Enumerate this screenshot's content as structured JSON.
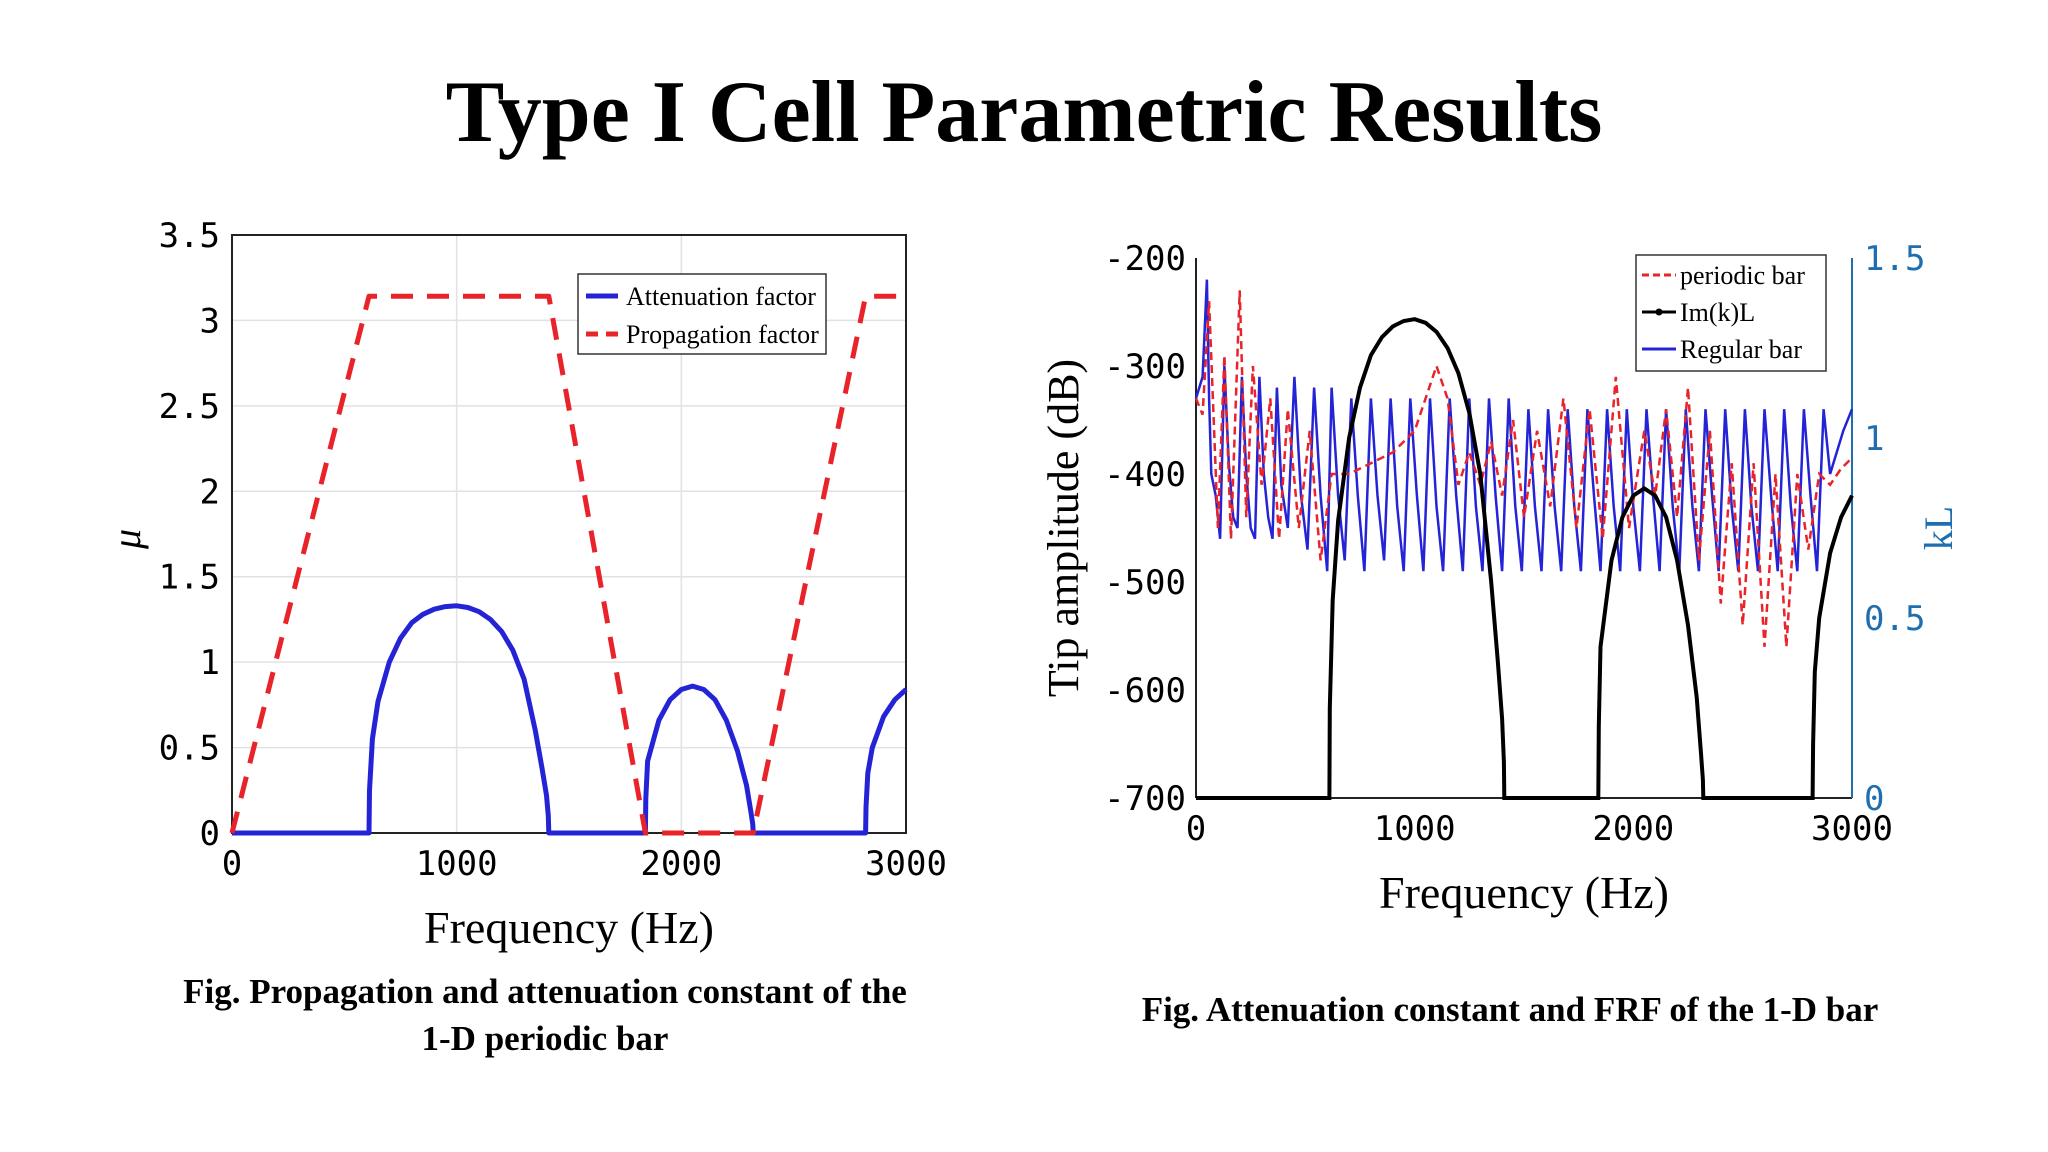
{
  "slide": {
    "title": "Type I Cell Parametric Results",
    "caption_left_line1": "Fig.   Propagation and attenuation constant of the",
    "caption_left_line2": "1-D periodic bar",
    "caption_right": "Fig.  Attenuation constant and FRF of the 1-D bar"
  },
  "colors": {
    "red": "#e8232a",
    "blue": "#2424d6",
    "black": "#000000",
    "right_axis": "#1f6fb0"
  },
  "chart_data": [
    {
      "type": "line",
      "title": "",
      "xlabel": "Frequency (Hz)",
      "ylabel": "μ",
      "xlim": [
        0,
        3000
      ],
      "ylim": [
        0,
        3.5
      ],
      "xticks": [
        "0",
        "1000",
        "2000",
        "3000"
      ],
      "yticks": [
        "0",
        "0.5",
        "1",
        "1.5",
        "2",
        "2.5",
        "3",
        "3.5"
      ],
      "grid": true,
      "legend_position": "top-right",
      "series": [
        {
          "name": "Attenuation factor",
          "color": "#2424d6",
          "style": "solid",
          "x": [
            0,
            610,
            612,
            625,
            650,
            700,
            750,
            800,
            850,
            900,
            950,
            1000,
            1050,
            1100,
            1150,
            1200,
            1250,
            1300,
            1350,
            1380,
            1400,
            1408,
            1410,
            1840,
            1842,
            1850,
            1900,
            1950,
            2000,
            2050,
            2100,
            2150,
            2200,
            2250,
            2290,
            2310,
            2318,
            2320,
            2820,
            2822,
            2830,
            2850,
            2900,
            2950,
            3000
          ],
          "y": [
            0,
            0,
            0.25,
            0.55,
            0.77,
            1.0,
            1.14,
            1.23,
            1.28,
            1.31,
            1.325,
            1.33,
            1.32,
            1.295,
            1.25,
            1.18,
            1.07,
            0.9,
            0.6,
            0.38,
            0.22,
            0.1,
            0,
            0,
            0.2,
            0.42,
            0.66,
            0.78,
            0.84,
            0.86,
            0.84,
            0.78,
            0.66,
            0.48,
            0.28,
            0.12,
            0.05,
            0,
            0,
            0.15,
            0.35,
            0.5,
            0.68,
            0.78,
            0.84
          ]
        },
        {
          "name": "Propagation factor",
          "color": "#e8232a",
          "style": "dashed",
          "x": [
            0,
            610,
            1410,
            1840,
            2320,
            2820,
            3000
          ],
          "y": [
            0,
            3.1416,
            3.1416,
            0,
            0,
            3.1416,
            3.1416
          ]
        }
      ]
    },
    {
      "type": "line",
      "title": "",
      "xlabel": "Frequency (Hz)",
      "ylabel": "Tip amplitude (dB)",
      "y2label": "kL",
      "xlim": [
        0,
        3000
      ],
      "ylim": [
        -700,
        -200
      ],
      "y2lim": [
        0,
        1.5
      ],
      "xticks": [
        "0",
        "1000",
        "2000",
        "3000"
      ],
      "yticks": [
        "-200",
        "-300",
        "-400",
        "-500",
        "-600",
        "-700"
      ],
      "y2ticks": [
        "0",
        "0.5",
        "1",
        "1.5"
      ],
      "grid": false,
      "legend_position": "top-right",
      "series": [
        {
          "name": "periodic bar",
          "color": "#e8232a",
          "style": "dashed",
          "axis": "left",
          "x": [
            0,
            30,
            60,
            100,
            130,
            160,
            200,
            230,
            260,
            300,
            340,
            380,
            420,
            470,
            520,
            570,
            620,
            700,
            800,
            900,
            1000,
            1100,
            1150,
            1200,
            1250,
            1300,
            1350,
            1400,
            1450,
            1500,
            1560,
            1620,
            1680,
            1740,
            1800,
            1860,
            1920,
            1980,
            2050,
            2100,
            2150,
            2200,
            2250,
            2300,
            2350,
            2400,
            2450,
            2500,
            2550,
            2600,
            2650,
            2700,
            2750,
            2800,
            2850,
            2900,
            2950,
            3000
          ],
          "y": [
            -330,
            -345,
            -240,
            -450,
            -290,
            -460,
            -230,
            -440,
            -300,
            -410,
            -330,
            -460,
            -340,
            -450,
            -360,
            -480,
            -400,
            -400,
            -390,
            -380,
            -360,
            -300,
            -330,
            -410,
            -380,
            -410,
            -370,
            -420,
            -350,
            -440,
            -360,
            -430,
            -330,
            -450,
            -340,
            -460,
            -310,
            -450,
            -360,
            -420,
            -340,
            -440,
            -320,
            -480,
            -360,
            -520,
            -390,
            -540,
            -390,
            -560,
            -400,
            -560,
            -400,
            -470,
            -400,
            -410,
            -395,
            -385
          ]
        },
        {
          "name": "Im(k)L",
          "color": "#000000",
          "style": "solid-dotted",
          "axis": "right",
          "x": [
            0,
            610,
            612,
            625,
            650,
            700,
            750,
            800,
            850,
            900,
            950,
            1000,
            1050,
            1100,
            1150,
            1200,
            1250,
            1300,
            1350,
            1380,
            1400,
            1408,
            1410,
            1840,
            1842,
            1850,
            1900,
            1950,
            2000,
            2050,
            2100,
            2150,
            2200,
            2250,
            2290,
            2310,
            2318,
            2320,
            2820,
            2822,
            2830,
            2850,
            2900,
            2950,
            3000
          ],
          "y": [
            0,
            0,
            0.25,
            0.55,
            0.77,
            1.0,
            1.14,
            1.23,
            1.28,
            1.31,
            1.325,
            1.33,
            1.32,
            1.295,
            1.25,
            1.18,
            1.07,
            0.9,
            0.6,
            0.38,
            0.22,
            0.1,
            0,
            0,
            0.2,
            0.42,
            0.66,
            0.78,
            0.84,
            0.86,
            0.84,
            0.78,
            0.66,
            0.48,
            0.28,
            0.12,
            0.05,
            0,
            0,
            0.15,
            0.35,
            0.5,
            0.68,
            0.78,
            0.84
          ]
        },
        {
          "name": "Regular bar",
          "color": "#2424d6",
          "style": "solid",
          "axis": "left",
          "x": [
            0,
            30,
            50,
            60,
            70,
            90,
            110,
            130,
            150,
            170,
            190,
            210,
            230,
            250,
            270,
            290,
            310,
            330,
            350,
            370,
            390,
            420,
            450,
            480,
            510,
            540,
            570,
            600,
            620,
            650,
            680,
            710,
            740,
            770,
            800,
            830,
            860,
            890,
            920,
            950,
            980,
            1010,
            1040,
            1070,
            1100,
            1130,
            1160,
            1190,
            1220,
            1250,
            1280,
            1310,
            1340,
            1370,
            1400,
            1430,
            1460,
            1490,
            1520,
            1550,
            1580,
            1610,
            1640,
            1670,
            1700,
            1730,
            1760,
            1790,
            1820,
            1850,
            1880,
            1910,
            1940,
            1970,
            2000,
            2030,
            2060,
            2090,
            2120,
            2150,
            2180,
            2210,
            2240,
            2270,
            2300,
            2330,
            2360,
            2390,
            2420,
            2450,
            2480,
            2510,
            2540,
            2570,
            2600,
            2630,
            2660,
            2690,
            2720,
            2750,
            2780,
            2810,
            2840,
            2870,
            2900,
            2930,
            2960,
            3000
          ],
          "y": [
            -330,
            -310,
            -220,
            -330,
            -400,
            -420,
            -460,
            -300,
            -390,
            -440,
            -450,
            -310,
            -400,
            -450,
            -460,
            -310,
            -400,
            -440,
            -460,
            -320,
            -410,
            -450,
            -310,
            -420,
            -470,
            -320,
            -420,
            -490,
            -320,
            -420,
            -480,
            -330,
            -420,
            -490,
            -330,
            -420,
            -480,
            -330,
            -430,
            -490,
            -330,
            -420,
            -490,
            -330,
            -430,
            -490,
            -330,
            -420,
            -490,
            -330,
            -430,
            -490,
            -330,
            -420,
            -490,
            -330,
            -430,
            -490,
            -340,
            -430,
            -490,
            -340,
            -430,
            -490,
            -340,
            -430,
            -490,
            -340,
            -420,
            -490,
            -340,
            -430,
            -490,
            -340,
            -430,
            -490,
            -340,
            -420,
            -490,
            -340,
            -430,
            -490,
            -340,
            -430,
            -490,
            -340,
            -420,
            -490,
            -340,
            -430,
            -490,
            -340,
            -430,
            -490,
            -340,
            -420,
            -490,
            -340,
            -430,
            -490,
            -340,
            -420,
            -490,
            -340,
            -400,
            -380,
            -360,
            -340
          ]
        }
      ]
    }
  ]
}
